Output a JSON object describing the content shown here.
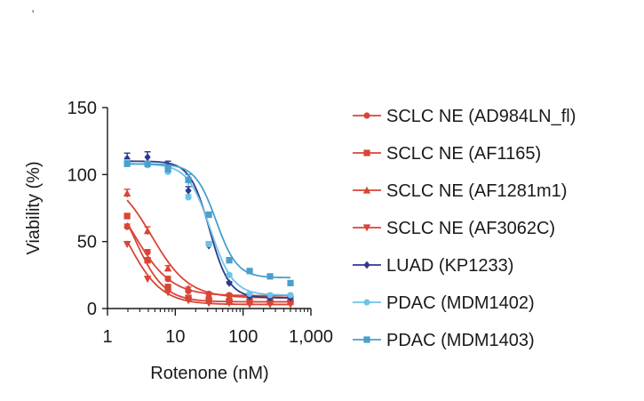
{
  "corner_mark": "'",
  "chart_data": {
    "type": "scatter",
    "xlabel": "Rotenone (nM)",
    "ylabel": "Viability (%)",
    "xscale": "log",
    "xlim": [
      1,
      1000
    ],
    "ylim": [
      0,
      150
    ],
    "x_ticks": [
      1,
      10,
      100,
      1000
    ],
    "x_tick_labels": [
      "1",
      "10",
      "100",
      "1,000"
    ],
    "y_ticks": [
      0,
      50,
      100,
      150
    ],
    "y_tick_labels": [
      "0",
      "50",
      "100",
      "150"
    ],
    "grid": false,
    "legend_position": "right",
    "x": [
      1.95,
      3.9,
      7.8,
      15.6,
      31.25,
      62.5,
      125,
      250,
      500
    ],
    "series": [
      {
        "name": "SCLC NE (AD984LN_fl)",
        "color": "#d94535",
        "marker": "circle",
        "values": [
          61,
          42,
          22,
          13,
          11,
          10,
          10,
          9,
          9
        ],
        "errors": [
          2,
          2,
          2,
          1,
          1,
          1,
          1,
          1,
          1
        ],
        "fit": {
          "top": 100,
          "bottom": 9.5,
          "ec50": 2.5,
          "hill": 1.6
        }
      },
      {
        "name": "SCLC NE (AF1165)",
        "color": "#d94535",
        "marker": "square",
        "values": [
          69,
          36,
          16,
          8,
          6,
          5,
          5,
          5,
          5
        ],
        "errors": [
          2,
          2,
          2,
          1,
          1,
          1,
          1,
          1,
          1
        ],
        "fit": {
          "top": 100,
          "bottom": 5,
          "ec50": 2.5,
          "hill": 2.0
        }
      },
      {
        "name": "SCLC NE (AF1281m1)",
        "color": "#d94535",
        "marker": "triangle-up",
        "values": [
          86,
          58,
          30,
          15,
          10,
          9,
          9,
          8,
          8
        ],
        "errors": [
          3,
          3,
          2,
          1,
          1,
          1,
          1,
          1,
          1
        ],
        "fit": {
          "top": 100,
          "bottom": 8,
          "ec50": 4.5,
          "hill": 1.6
        }
      },
      {
        "name": "SCLC NE (AF3062C)",
        "color": "#d94535",
        "marker": "triangle-down",
        "values": [
          48,
          22,
          12,
          6,
          4,
          4,
          3,
          3,
          3
        ],
        "errors": [
          2,
          2,
          1,
          1,
          1,
          1,
          1,
          1,
          1
        ],
        "fit": {
          "top": 100,
          "bottom": 3,
          "ec50": 1.9,
          "hill": 1.7
        }
      },
      {
        "name": "LUAD (KP1233)",
        "color": "#2b3a8f",
        "marker": "diamond",
        "values": [
          112,
          113,
          107,
          88,
          47,
          19,
          9,
          8,
          8
        ],
        "errors": [
          4,
          4,
          3,
          3,
          2,
          1,
          1,
          1,
          1
        ],
        "fit": {
          "top": 110,
          "bottom": 8,
          "ec50": 32,
          "hill": 3.0
        }
      },
      {
        "name": "PDAC (MDM1402)",
        "color": "#6ec3e6",
        "marker": "circle",
        "values": [
          109,
          107,
          102,
          83,
          48,
          25,
          11,
          10,
          10
        ],
        "errors": [
          2,
          2,
          2,
          2,
          2,
          1,
          1,
          1,
          1
        ],
        "fit": {
          "top": 108,
          "bottom": 10,
          "ec50": 33,
          "hill": 2.6
        }
      },
      {
        "name": "PDAC (MDM1403)",
        "color": "#4a9fcb",
        "marker": "square",
        "values": [
          108,
          108,
          104,
          96,
          70,
          36,
          28,
          24,
          19
        ],
        "errors": [
          2,
          2,
          2,
          4,
          2,
          2,
          1,
          1,
          1
        ],
        "fit": {
          "top": 108,
          "bottom": 23,
          "ec50": 40,
          "hill": 2.8
        }
      }
    ]
  }
}
